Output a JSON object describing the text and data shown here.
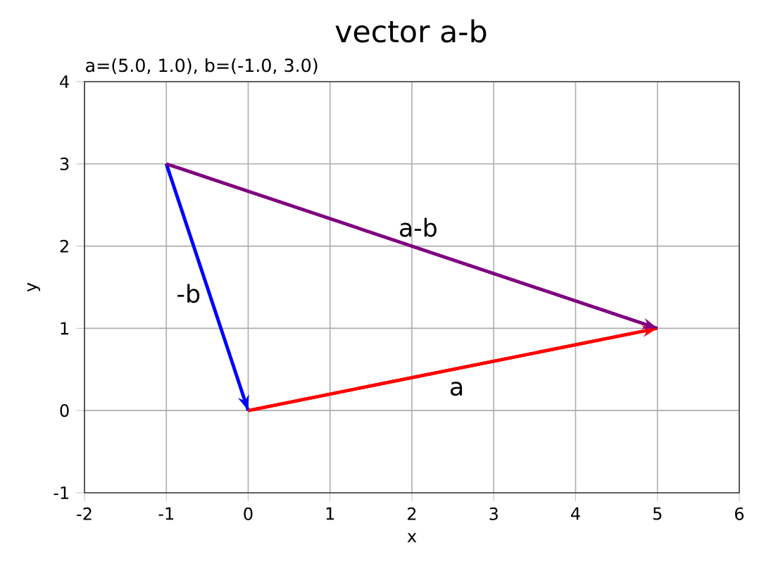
{
  "chart_data": {
    "type": "line",
    "title": "vector a-b",
    "subtitle": "a=(5.0, 1.0), b=(-1.0, 3.0)",
    "xlabel": "x",
    "ylabel": "y",
    "series": [
      {
        "name": "a",
        "color": "#ff0000",
        "x": [
          0,
          5
        ],
        "values": [
          0,
          1
        ]
      },
      {
        "name": "-b",
        "color": "#0000ff",
        "x": [
          -1,
          0
        ],
        "values": [
          3,
          0
        ]
      },
      {
        "name": "a-b",
        "color": "#800080",
        "x": [
          -1,
          5
        ],
        "values": [
          3,
          1
        ]
      }
    ],
    "xlim": [
      -2,
      6
    ],
    "ylim": [
      -1,
      4
    ],
    "xticks": [
      -2,
      -1,
      0,
      1,
      2,
      3,
      4,
      5,
      6
    ],
    "yticks": [
      -1,
      0,
      1,
      2,
      3,
      4
    ],
    "grid": true,
    "line_style": "solid"
  }
}
